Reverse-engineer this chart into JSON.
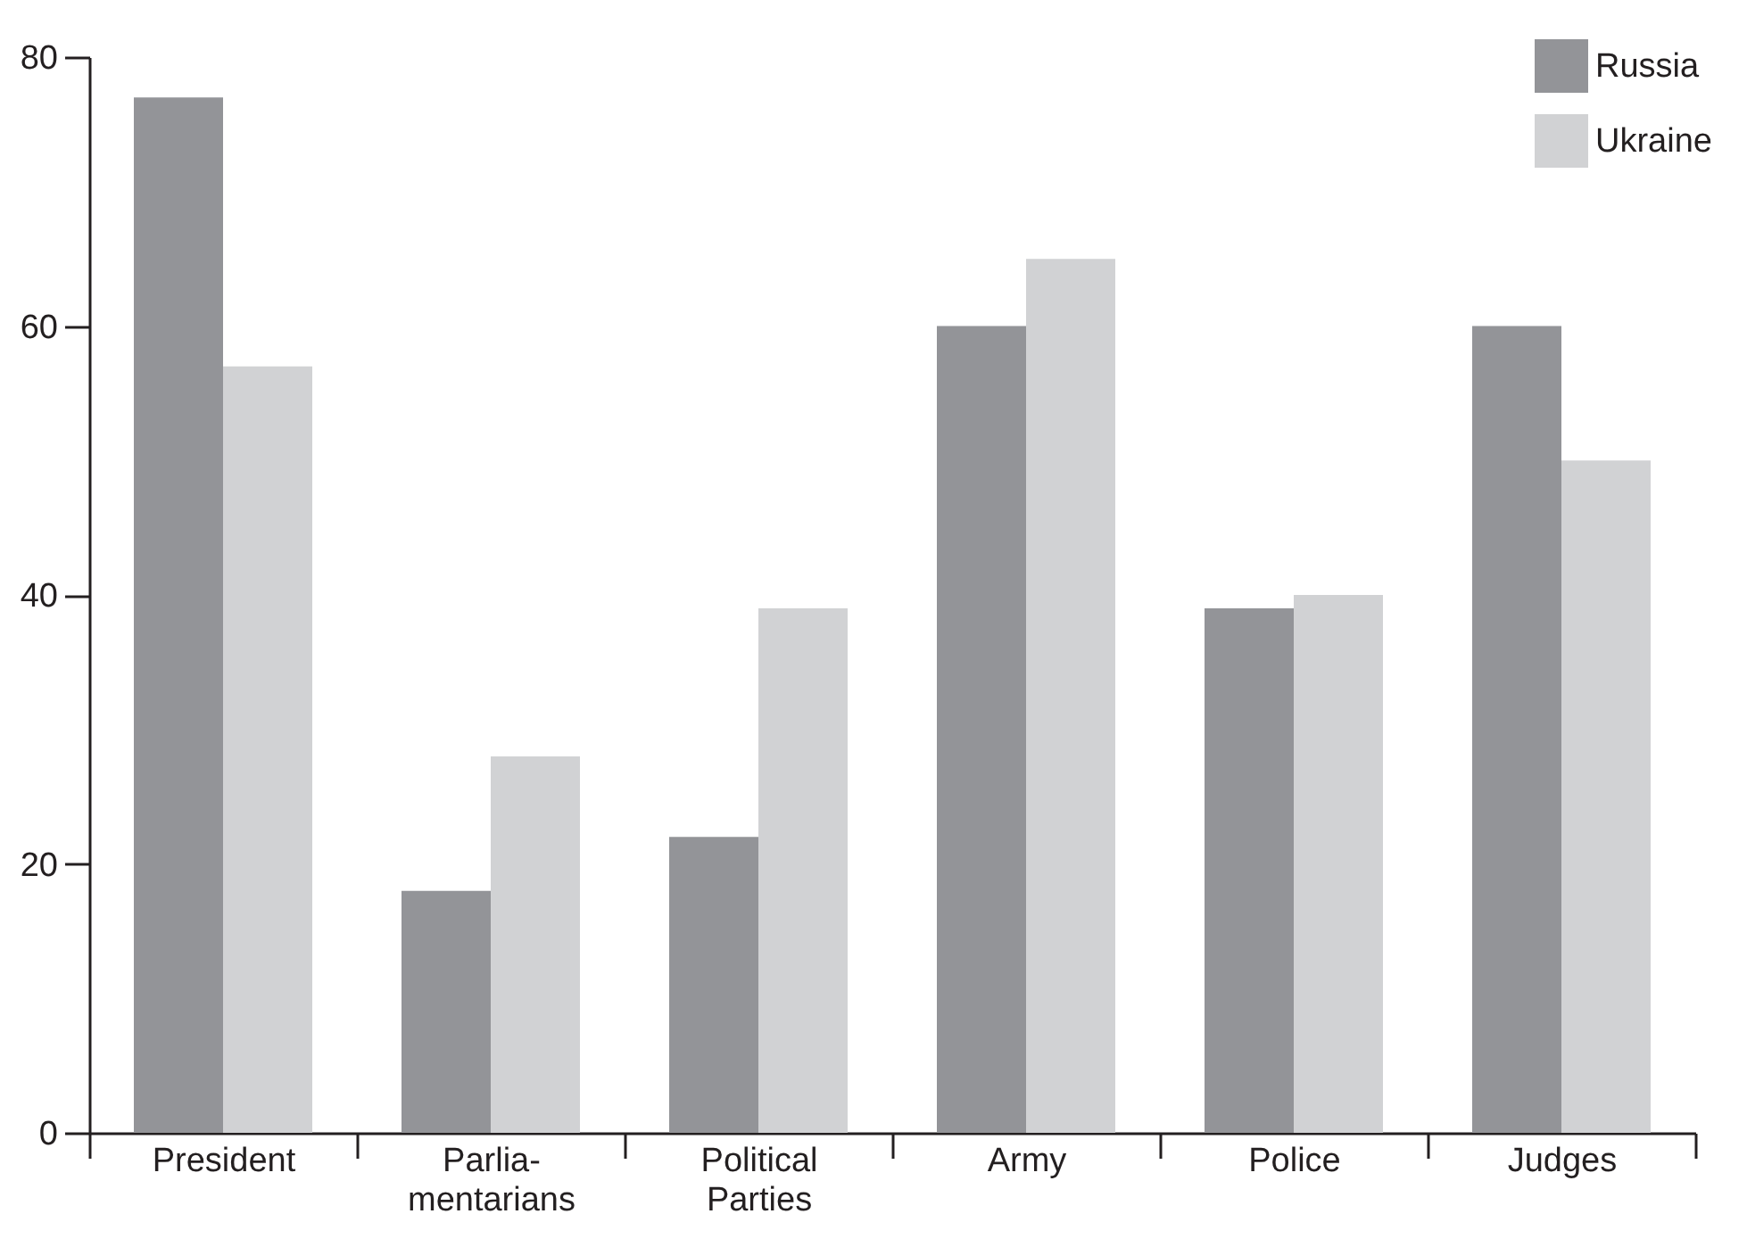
{
  "chart_data": {
    "type": "bar",
    "categories": [
      "President",
      "Parlia-\nmentarians",
      "Political\nParties",
      "Army",
      "Police",
      "Judges"
    ],
    "series": [
      {
        "name": "Russia",
        "color": "#939498",
        "values": [
          77,
          18,
          22,
          60,
          39,
          60
        ]
      },
      {
        "name": "Ukraine",
        "color": "#d1d2d4",
        "values": [
          57,
          28,
          39,
          65,
          40,
          50
        ]
      }
    ],
    "ylim": [
      0,
      80
    ],
    "yticks": [
      0,
      20,
      40,
      60,
      80
    ],
    "grid": false,
    "legend": "top right"
  }
}
